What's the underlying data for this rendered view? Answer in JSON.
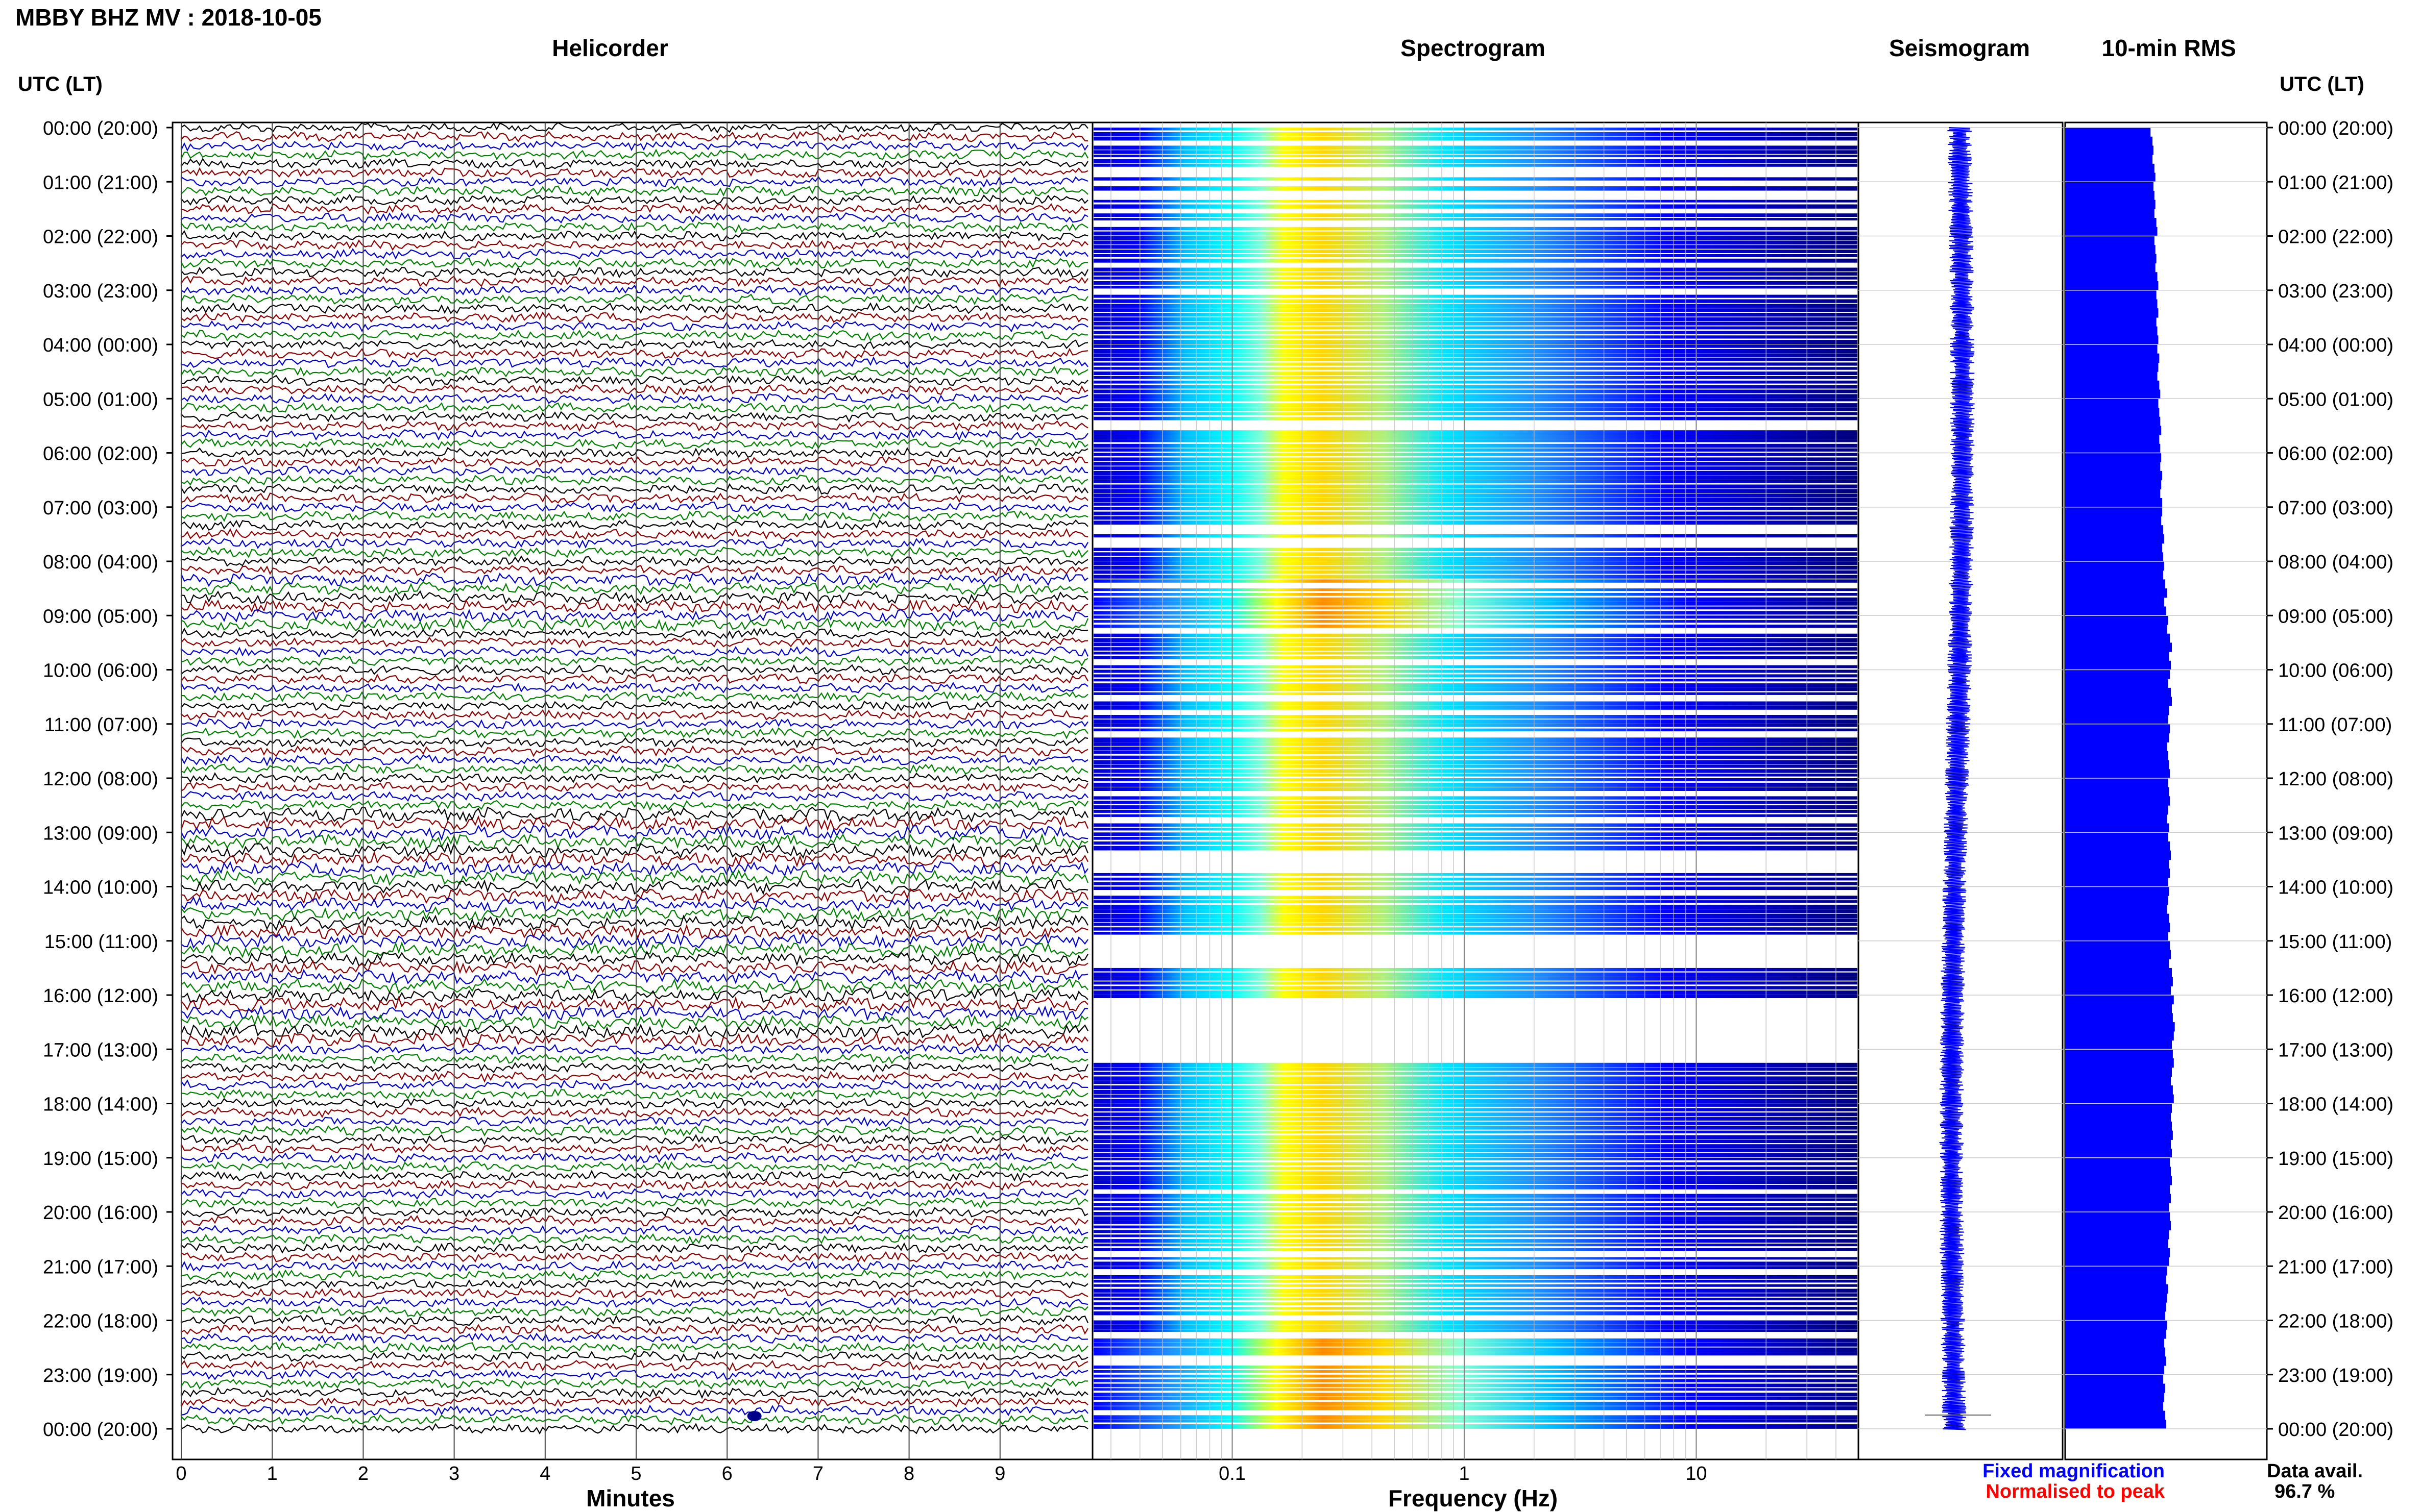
{
  "title": "MBBY BHZ MV : 2018-10-05",
  "time_axis_label": "UTC (LT)",
  "panels": {
    "helicorder": "Helicorder",
    "spectrogram": "Spectrogram",
    "seismogram": "Seismogram",
    "rms": "10-min RMS"
  },
  "footer": {
    "fixed": "Fixed magnification",
    "normalised": "Normalised to peak",
    "avail_label": "Data avail.",
    "avail_value": "96.7 %"
  },
  "colors": {
    "trace_cycle": [
      "#000000",
      "#8b0000",
      "#0000c8",
      "#008000"
    ],
    "rms_fill": "#0000ff",
    "fixed_text": "#0000ff",
    "normalised_text": "#ff0000",
    "spectrogram_scale": [
      "#00008b",
      "#0000ff",
      "#1e90ff",
      "#00ffff",
      "#7fffd4",
      "#ffff00",
      "#ffa500",
      "#ff0000"
    ]
  },
  "chart_data": [
    {
      "type": "helicorder",
      "title": "Helicorder",
      "xlabel": "Minutes",
      "xticks": [
        0,
        1,
        2,
        3,
        4,
        5,
        6,
        7,
        8,
        9
      ],
      "xlim": [
        0,
        10
      ],
      "time_ticks": [
        "00:00 (20:00)",
        "01:00 (21:00)",
        "02:00 (22:00)",
        "03:00 (23:00)",
        "04:00 (00:00)",
        "05:00 (01:00)",
        "06:00 (02:00)",
        "07:00 (03:00)",
        "08:00 (04:00)",
        "09:00 (05:00)",
        "10:00 (06:00)",
        "11:00 (07:00)",
        "12:00 (08:00)",
        "13:00 (09:00)",
        "14:00 (10:00)",
        "15:00 (11:00)",
        "16:00 (12:00)",
        "17:00 (13:00)",
        "18:00 (14:00)",
        "19:00 (15:00)",
        "20:00 (16:00)",
        "21:00 (17:00)",
        "22:00 (18:00)",
        "23:00 (19:00)",
        "00:00 (20:00)"
      ],
      "lines_per_hour": 6,
      "grid": true
    },
    {
      "type": "heatmap",
      "title": "Spectrogram",
      "xlabel": "Frequency (Hz)",
      "xscale": "log",
      "xticks": [
        0.1,
        1,
        10
      ],
      "xtick_labels": [
        "0.1",
        "1",
        "10"
      ],
      "xlim": [
        0.025,
        50
      ],
      "grid": true,
      "blank_intervals_hours": [
        [
          1.15,
          1.3
        ],
        [
          13.4,
          13.7
        ],
        [
          14.9,
          15.5
        ],
        [
          16.05,
          17.2
        ]
      ],
      "high_energy_intervals_hours": [
        [
          8.3,
          9.2
        ],
        [
          22.2,
          24.0
        ]
      ]
    },
    {
      "type": "line",
      "title": "Seismogram",
      "grid": true,
      "note": ""
    },
    {
      "type": "bar",
      "orientation": "horizontal",
      "title": "10-min RMS",
      "bins_per_hour": 6,
      "relative_values": [
        0.88,
        0.9,
        0.91,
        0.9,
        0.92,
        0.93,
        0.91,
        0.92,
        0.93,
        0.92,
        0.94,
        0.95,
        0.92,
        0.93,
        0.94,
        0.93,
        0.95,
        0.96,
        0.94,
        0.95,
        0.96,
        0.94,
        0.95,
        0.96,
        0.95,
        0.97,
        0.96,
        0.95,
        0.97,
        0.98,
        0.96,
        0.97,
        0.98,
        0.99,
        0.97,
        0.98,
        0.99,
        0.98,
        1.0,
        0.99,
        0.98,
        1.0,
        1.0,
        0.99,
        1.01,
        1.02,
        1.0,
        1.01,
        1.02,
        1.01,
        1.03,
        1.05,
        1.02,
        1.04,
        1.06,
        1.05,
        1.08,
        1.1,
        1.07,
        1.09,
        1.08,
        1.06,
        1.09,
        1.1,
        1.07,
        1.06,
        1.08,
        1.07,
        1.05,
        1.06,
        1.07,
        1.08,
        1.06,
        1.07,
        1.08,
        1.06,
        1.05,
        1.07,
        1.06,
        1.08,
        1.09,
        1.07,
        1.08,
        1.06,
        1.07,
        1.06,
        1.05,
        1.07,
        1.08,
        1.06,
        1.08,
        1.09,
        1.07,
        1.1,
        1.11,
        1.09,
        1.12,
        1.1,
        1.11,
        1.13,
        1.12,
        1.1,
        1.11,
        1.12,
        1.1,
        1.09,
        1.11,
        1.12,
        1.1,
        1.09,
        1.1,
        1.11,
        1.09,
        1.1,
        1.08,
        1.09,
        1.1,
        1.08,
        1.09,
        1.07,
        1.08,
        1.09,
        1.07,
        1.06,
        1.08,
        1.07,
        1.05,
        1.04,
        1.06,
        1.05,
        1.04,
        1.03,
        1.05,
        1.04,
        1.02,
        1.03,
        1.04,
        1.02,
        1.01,
        1.03,
        1.02,
        1.01,
        1.03,
        1.04
      ]
    }
  ]
}
